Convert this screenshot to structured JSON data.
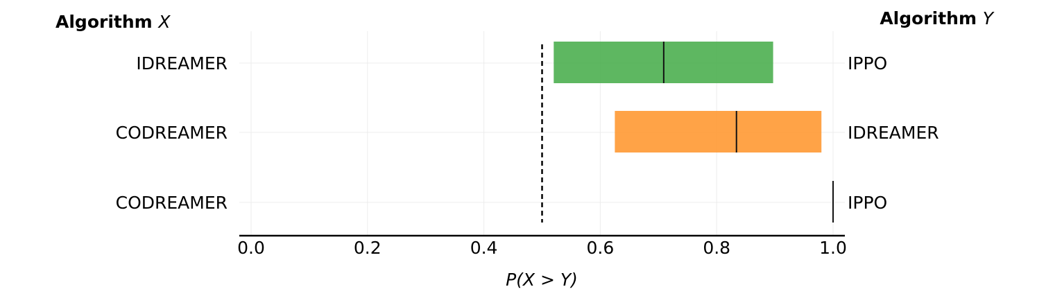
{
  "chart_data": {
    "type": "interval",
    "header_left": {
      "text": "Algorithm",
      "variable": "X"
    },
    "header_right": {
      "text": "Algorithm",
      "variable": "Y"
    },
    "xlabel": "P(X > Y)",
    "xlim": [
      0.0,
      1.0
    ],
    "xticks": [
      "0.0",
      "0.2",
      "0.4",
      "0.6",
      "0.8",
      "1.0"
    ],
    "grid": true,
    "reference_line": 0.5,
    "rows": [
      {
        "algorithm_x": "IDREAMER",
        "algorithm_y": "IPPO",
        "low": 0.52,
        "high": 0.897,
        "estimate": 0.709,
        "color": "#4caf50"
      },
      {
        "algorithm_x": "CODREAMER",
        "algorithm_y": "IDREAMER",
        "low": 0.625,
        "high": 0.98,
        "estimate": 0.834,
        "color": "#ff9933"
      },
      {
        "algorithm_x": "CODREAMER",
        "algorithm_y": "IPPO",
        "low": 1.0,
        "high": 1.0,
        "estimate": 1.0,
        "color": "#000000"
      }
    ]
  }
}
